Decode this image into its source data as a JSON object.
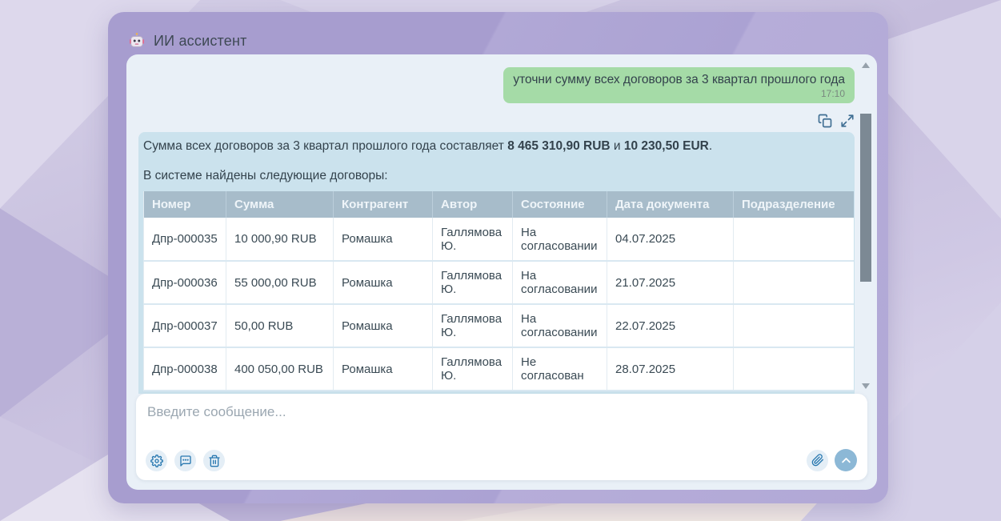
{
  "header": {
    "title": "ИИ ассистент",
    "robot_icon": "robot-face"
  },
  "chat": {
    "user_message": {
      "text": "уточни сумму всех договоров за 3 квартал прошлого года",
      "time": "17:10"
    },
    "message_actions": {
      "copy_icon": "copy",
      "expand_icon": "open-in-full"
    },
    "assistant_message": {
      "summary_prefix": "Сумма всех договоров за 3 квартал прошлого года составляет ",
      "amount_rub": "8 465 310,90 RUB",
      "conjunction": " и ",
      "amount_eur": "10 230,50 EUR",
      "summary_suffix": ".",
      "table_intro": "В системе найдены следующие договоры:",
      "table": {
        "columns": [
          "Номер",
          "Сумма",
          "Контрагент",
          "Автор",
          "Состояние",
          "Дата документа",
          "Подразделение"
        ],
        "rows": [
          [
            "Дпр-000035",
            "10 000,90 RUB",
            "Ромашка",
            "Галлямова Ю.",
            "На согласовании",
            "04.07.2025",
            ""
          ],
          [
            "Дпр-000036",
            "55 000,00 RUB",
            "Ромашка",
            "Галлямова Ю.",
            "На согласовании",
            "21.07.2025",
            ""
          ],
          [
            "Дпр-000037",
            "50,00 RUB",
            "Ромашка",
            "Галлямова Ю.",
            "На согласовании",
            "22.07.2025",
            ""
          ],
          [
            "Дпр-000038",
            "400 050,00 RUB",
            "Ромашка",
            "Галлямова Ю.",
            "Не согласован",
            "28.07.2025",
            ""
          ]
        ]
      }
    }
  },
  "input": {
    "placeholder": "Введите сообщение...",
    "tools": [
      "settings",
      "chat-history",
      "clear-chat",
      "attach-file",
      "send"
    ]
  },
  "colors": {
    "window_purple": "#a79dcf",
    "panel_bg": "#e9f0f7",
    "user_bubble": "#a5dba7",
    "assistant_bubble": "#cbe2ed",
    "table_header_bg": "#a7bcca",
    "accent_blue": "#2878b0",
    "send_button": "#8cb8d6"
  }
}
